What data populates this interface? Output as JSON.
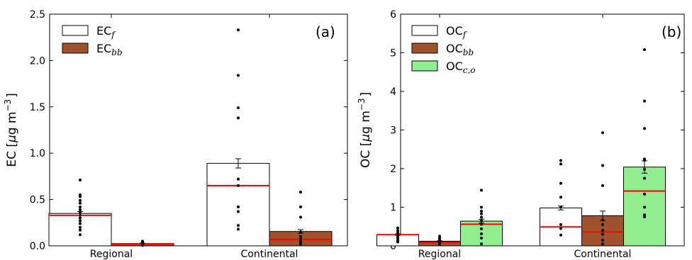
{
  "chart_data": [
    {
      "type": "bar",
      "panel_label": "(a)",
      "ylabel_main": "EC [",
      "ylabel_mu": "μ",
      "ylabel_unit": "g m",
      "ylabel_exp": "−3",
      "ylabel_end": "]",
      "categories": [
        "Regional",
        "Continental"
      ],
      "ylim": [
        0,
        2.5
      ],
      "yticks": [
        "0.0",
        "0.5",
        "1.0",
        "1.5",
        "2.0",
        "2.5"
      ],
      "legend_placement": "top-left",
      "series": [
        {
          "name": "EC",
          "sub": "f",
          "color": "#ffffff",
          "means": [
            0.35,
            0.89
          ],
          "medians": [
            0.33,
            0.65
          ],
          "errors": [
            0.02,
            0.05
          ],
          "points": [
            [
              0.71,
              0.55,
              0.53,
              0.49,
              0.46,
              0.42,
              0.39,
              0.36,
              0.33,
              0.3,
              0.27,
              0.24,
              0.2,
              0.17,
              0.12
            ],
            [
              2.33,
              1.84,
              1.49,
              1.38,
              0.72,
              0.65,
              0.42,
              0.37,
              0.22,
              0.18
            ]
          ]
        },
        {
          "name": "EC",
          "sub": "bb",
          "color": "#a0522d",
          "means": [
            0.025,
            0.155
          ],
          "medians": [
            0.02,
            0.07
          ],
          "errors": [
            0.005,
            0.02
          ],
          "points": [
            [
              0.05,
              0.04,
              0.03,
              0.03,
              0.02,
              0.02,
              0.015,
              0.01,
              0.01,
              0.005
            ],
            [
              0.58,
              0.42,
              0.31,
              0.15,
              0.1,
              0.07,
              0.05,
              0.04,
              0.02
            ]
          ]
        }
      ]
    },
    {
      "type": "bar",
      "panel_label": "(b)",
      "ylabel_main": "OC [",
      "ylabel_mu": "μ",
      "ylabel_unit": "g m",
      "ylabel_exp": "−3",
      "ylabel_end": "]",
      "categories": [
        "Regional",
        "Continental"
      ],
      "ylim": [
        0,
        6
      ],
      "yticks": [
        "0",
        "1",
        "2",
        "3",
        "4",
        "5",
        "6"
      ],
      "legend_placement": "top-left",
      "series": [
        {
          "name": "OC",
          "sub": "f",
          "color": "#ffffff",
          "means": [
            0.29,
            0.98
          ],
          "medians": [
            0.29,
            0.49
          ],
          "errors": [
            0.02,
            0.05
          ],
          "points": [
            [
              0.46,
              0.39,
              0.33,
              0.28,
              0.24,
              0.19,
              0.14,
              0.1
            ],
            [
              2.21,
              2.12,
              1.62,
              1.26,
              1.0,
              0.55,
              0.45,
              0.28
            ]
          ]
        },
        {
          "name": "OC",
          "sub": "bb",
          "color": "#a0522d",
          "means": [
            0.12,
            0.78
          ],
          "medians": [
            0.09,
            0.36
          ],
          "errors": [
            0.01,
            0.12
          ],
          "points": [
            [
              0.25,
              0.2,
              0.15,
              0.1,
              0.07,
              0.05,
              0.03
            ],
            [
              2.93,
              2.08,
              1.56,
              0.67,
              0.55,
              0.4,
              0.3,
              0.15,
              0.05
            ]
          ]
        },
        {
          "name": "OC",
          "sub": "c,o",
          "color": "#90ee90",
          "means": [
            0.64,
            2.04
          ],
          "medians": [
            0.56,
            1.42
          ],
          "errors": [
            0.05,
            0.16
          ],
          "points": [
            [
              1.44,
              1.0,
              0.9,
              0.83,
              0.74,
              0.65,
              0.56,
              0.44,
              0.31,
              0.2,
              0.05
            ],
            [
              5.08,
              3.75,
              3.04,
              2.25,
              2.22,
              1.98,
              1.75,
              1.34,
              1.0,
              0.8,
              0.75
            ]
          ]
        }
      ]
    }
  ]
}
